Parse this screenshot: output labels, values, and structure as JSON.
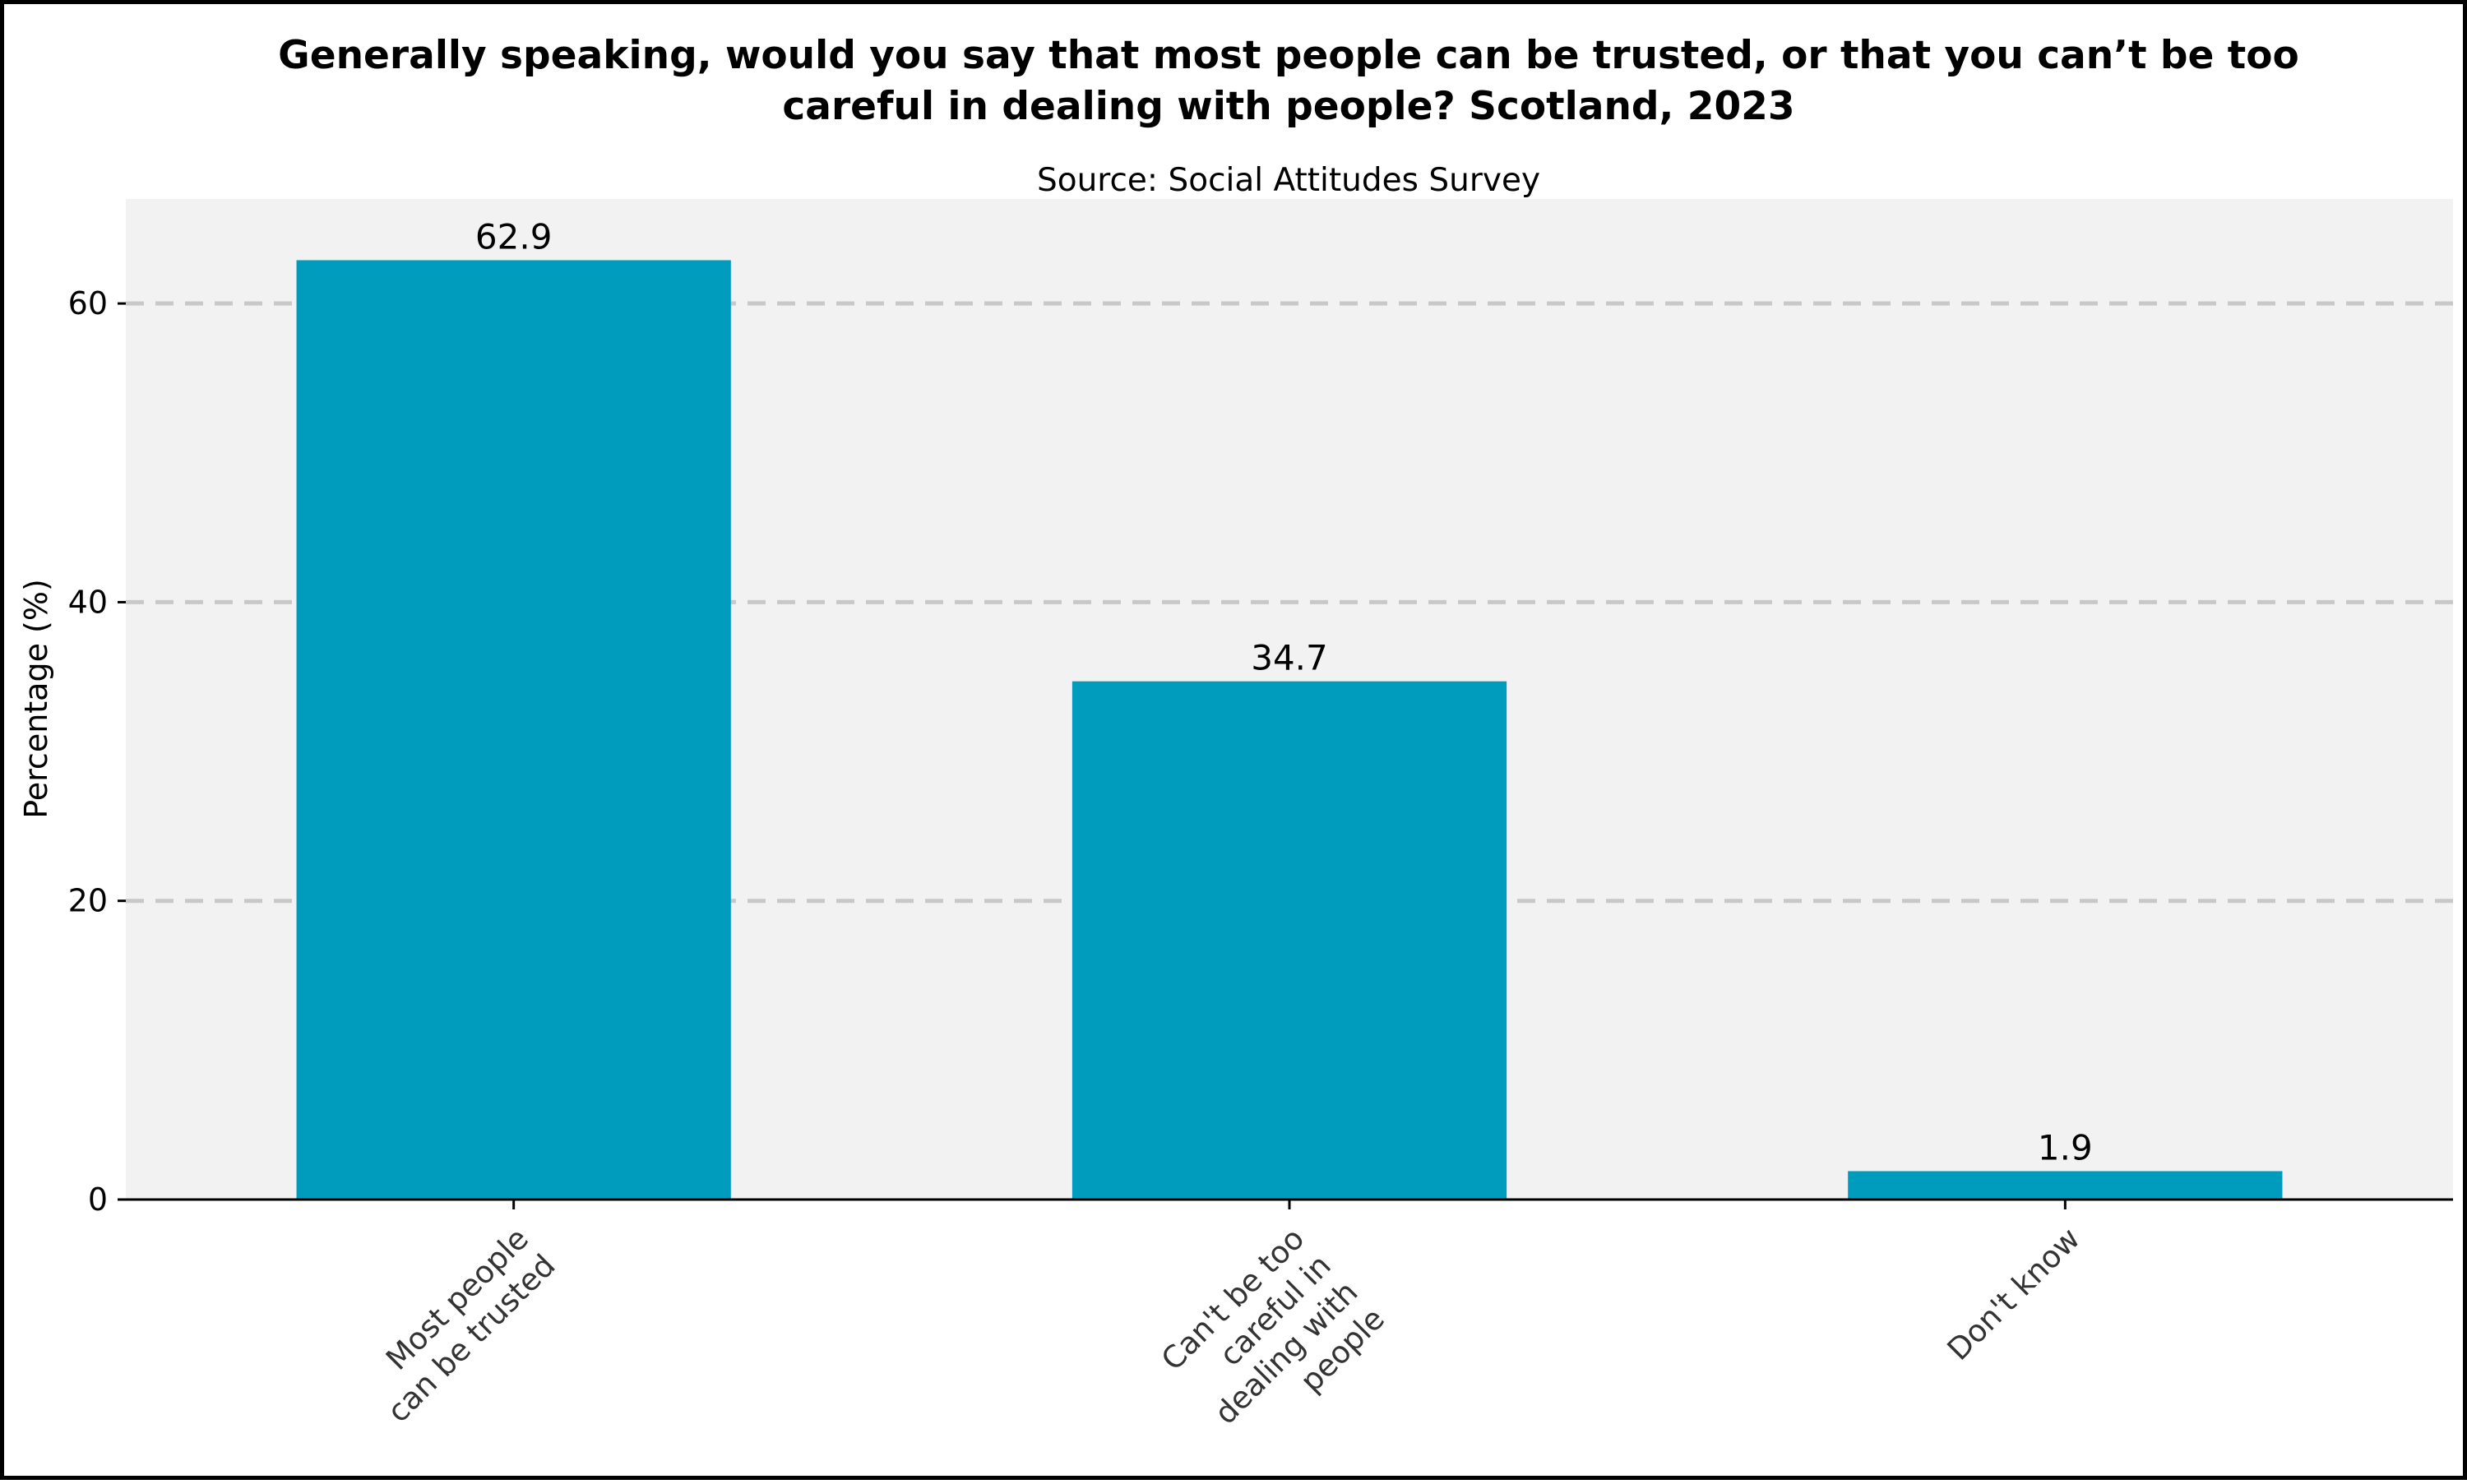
{
  "chart_data": {
    "type": "bar",
    "title_lines": [
      "Generally speaking, would you say that most people can be trusted, or that you can’t be too",
      "careful in dealing with people? Scotland, 2023"
    ],
    "subtitle": "Source: Social Attitudes Survey",
    "ylabel": "Percentage (%)",
    "xlabel": "",
    "ylim": [
      0,
      67
    ],
    "yticks": [
      0,
      20,
      40,
      60
    ],
    "grid": true,
    "categories": [
      [
        "Most people",
        "can be trusted"
      ],
      [
        "Can't be too",
        "careful in",
        "dealing with",
        "people"
      ],
      [
        "Don't know"
      ]
    ],
    "values": [
      62.9,
      34.7,
      1.9
    ],
    "value_labels": [
      "62.9",
      "34.7",
      "1.9"
    ],
    "bar_color": "#009cbe",
    "plot_background": "#f2f2f2",
    "grid_color": "#c8c8c8"
  }
}
